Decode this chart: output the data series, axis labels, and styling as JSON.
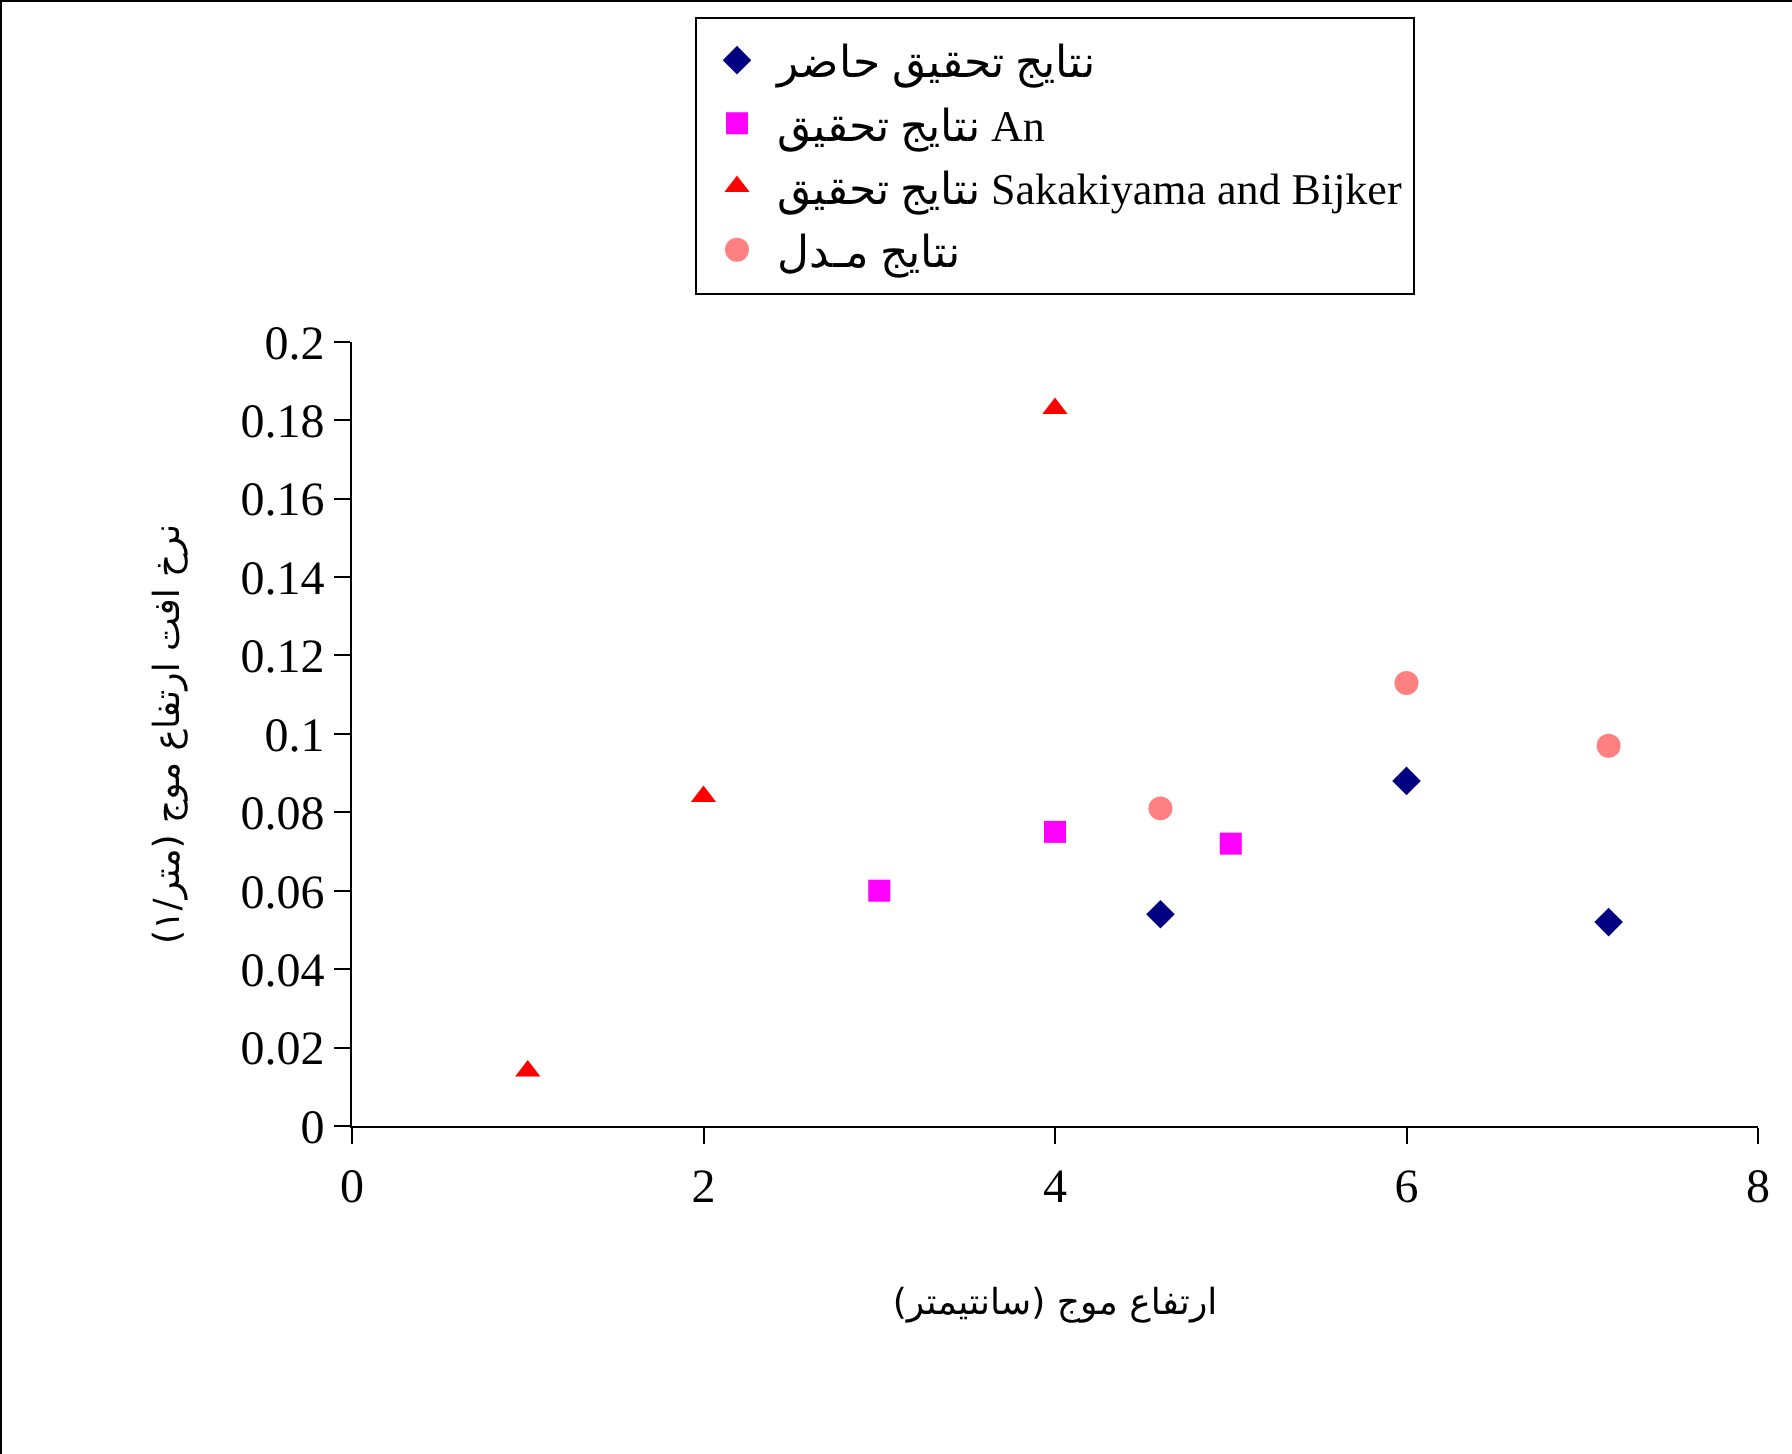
{
  "chart_data": {
    "type": "scatter",
    "xlabel": "ارتفاع موج (سانتیمتر)",
    "ylabel": "نرخ افت ارتفاع موج (متر/۱)",
    "xlim": [
      0,
      8
    ],
    "xticks": [
      0,
      2,
      4,
      6,
      8
    ],
    "ylim": [
      0,
      0.2
    ],
    "yticks": [
      0,
      0.02,
      0.04,
      0.06,
      0.08,
      0.1,
      0.12,
      0.14,
      0.16,
      0.18,
      0.2
    ],
    "grid": false,
    "legend": "top",
    "series": [
      {
        "name": "نتایج تحقیق حاضر",
        "color": "#000080",
        "marker": "diamond",
        "x": [
          4.6,
          6,
          7.15
        ],
        "values": [
          0.054,
          0.088,
          0.052
        ]
      },
      {
        "name": "نتایج تحقیق An",
        "color": "#ff00ff",
        "marker": "square",
        "x": [
          3,
          4,
          5
        ],
        "values": [
          0.06,
          0.075,
          0.072
        ]
      },
      {
        "name": "نتایج تحقیق Sakakiyama and Bijker",
        "color": "#ff0000",
        "marker": "triangle",
        "x": [
          1,
          2,
          4
        ],
        "values": [
          0.014,
          0.084,
          0.183
        ]
      },
      {
        "name": "نتایج مـدل",
        "color": "#ff8080",
        "marker": "circle",
        "x": [
          4.6,
          6,
          7.15
        ],
        "values": [
          0.081,
          0.113,
          0.097
        ]
      }
    ]
  }
}
